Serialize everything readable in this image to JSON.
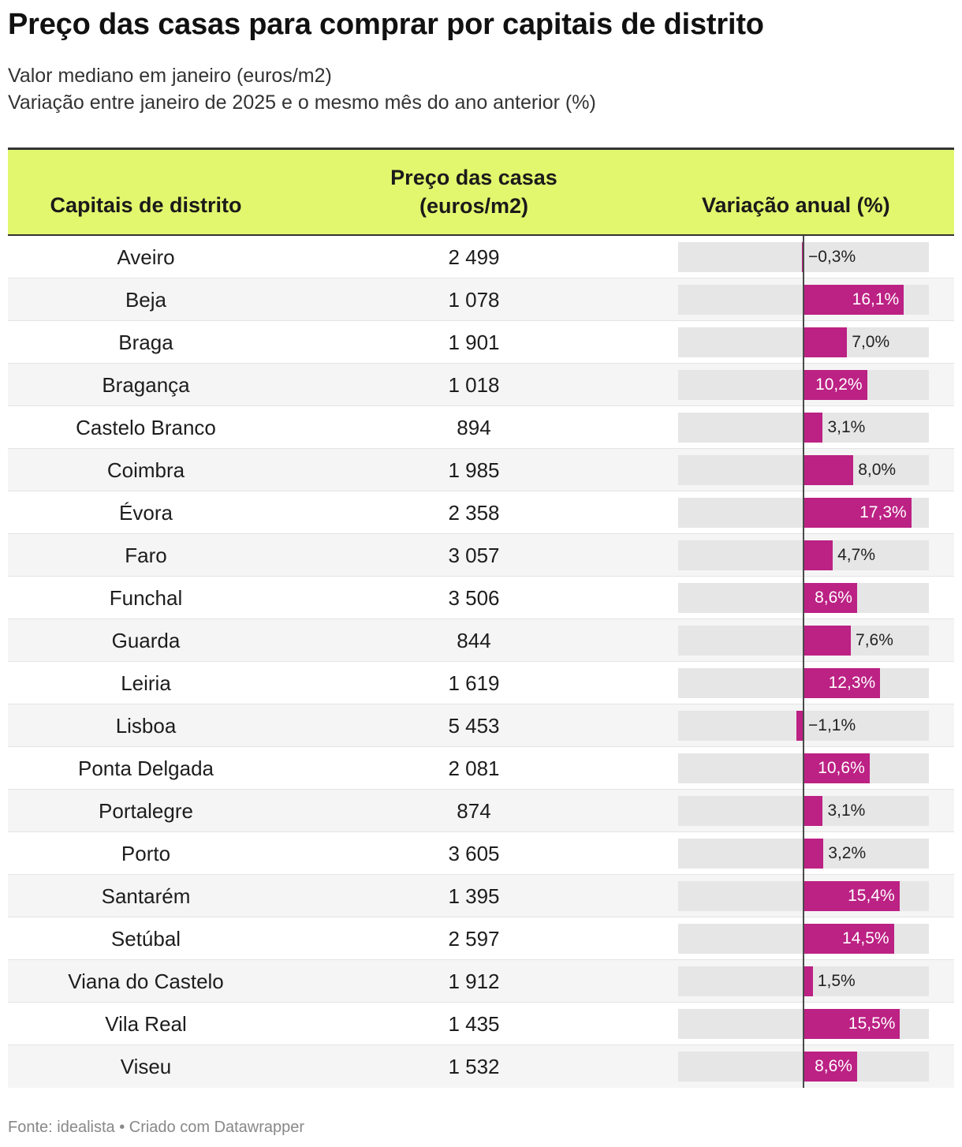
{
  "title": "Preço das casas para comprar por capitais de distrito",
  "subtitle_line1": "Valor mediano em janeiro (euros/m2)",
  "subtitle_line2": "Variação entre janeiro de 2025 e o mesmo mês do ano anterior (%)",
  "columns": {
    "capital": "Capitais de distrito",
    "price": "Preço das casas\n(euros/m2)",
    "variation": "Variação anual (%)"
  },
  "footer": "Fonte: idealista • Criado com Datawrapper",
  "colors": {
    "header_bg": "#e2f76d",
    "bar": "#bc2184",
    "track": "#e6e6e6"
  },
  "chart_data": {
    "type": "table",
    "bar_scale": [
      -20,
      20
    ],
    "rows": [
      {
        "capital": "Aveiro",
        "price": "2 499",
        "variation": -0.3,
        "variation_label": "−0,3%"
      },
      {
        "capital": "Beja",
        "price": "1 078",
        "variation": 16.1,
        "variation_label": "16,1%"
      },
      {
        "capital": "Braga",
        "price": "1 901",
        "variation": 7.0,
        "variation_label": "7,0%"
      },
      {
        "capital": "Bragança",
        "price": "1 018",
        "variation": 10.2,
        "variation_label": "10,2%"
      },
      {
        "capital": "Castelo Branco",
        "price": "894",
        "variation": 3.1,
        "variation_label": "3,1%"
      },
      {
        "capital": "Coimbra",
        "price": "1 985",
        "variation": 8.0,
        "variation_label": "8,0%"
      },
      {
        "capital": "Évora",
        "price": "2 358",
        "variation": 17.3,
        "variation_label": "17,3%"
      },
      {
        "capital": "Faro",
        "price": "3 057",
        "variation": 4.7,
        "variation_label": "4,7%"
      },
      {
        "capital": "Funchal",
        "price": "3 506",
        "variation": 8.6,
        "variation_label": "8,6%"
      },
      {
        "capital": "Guarda",
        "price": "844",
        "variation": 7.6,
        "variation_label": "7,6%"
      },
      {
        "capital": "Leiria",
        "price": "1 619",
        "variation": 12.3,
        "variation_label": "12,3%"
      },
      {
        "capital": "Lisboa",
        "price": "5 453",
        "variation": -1.1,
        "variation_label": "−1,1%"
      },
      {
        "capital": "Ponta Delgada",
        "price": "2 081",
        "variation": 10.6,
        "variation_label": "10,6%"
      },
      {
        "capital": "Portalegre",
        "price": "874",
        "variation": 3.1,
        "variation_label": "3,1%"
      },
      {
        "capital": "Porto",
        "price": "3 605",
        "variation": 3.2,
        "variation_label": "3,2%"
      },
      {
        "capital": "Santarém",
        "price": "1 395",
        "variation": 15.4,
        "variation_label": "15,4%"
      },
      {
        "capital": "Setúbal",
        "price": "2 597",
        "variation": 14.5,
        "variation_label": "14,5%"
      },
      {
        "capital": "Viana do Castelo",
        "price": "1 912",
        "variation": 1.5,
        "variation_label": "1,5%"
      },
      {
        "capital": "Vila Real",
        "price": "1 435",
        "variation": 15.5,
        "variation_label": "15,5%"
      },
      {
        "capital": "Viseu",
        "price": "1 532",
        "variation": 8.6,
        "variation_label": "8,6%"
      }
    ]
  }
}
